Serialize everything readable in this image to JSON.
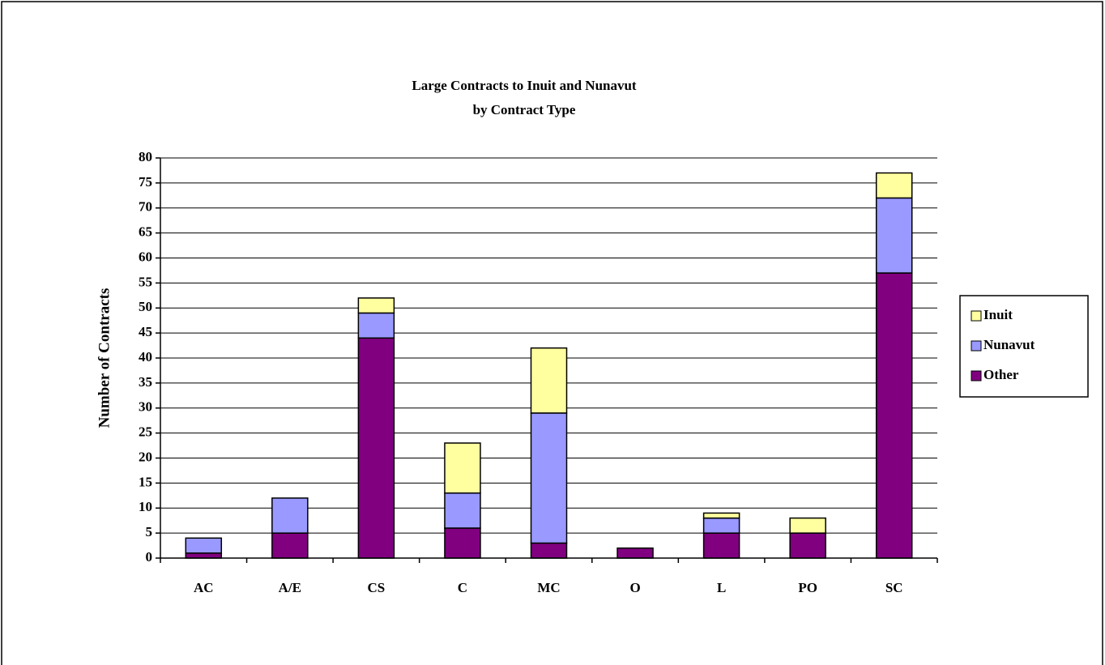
{
  "chart_data": {
    "type": "stacked_bar",
    "title": [
      "Large Contracts to Inuit and Nunavut",
      "by Contract Type"
    ],
    "y_label": "Number of Contracts",
    "categories": [
      "AC",
      "A/E",
      "CS",
      "C",
      "MC",
      "O",
      "L",
      "PO",
      "SC"
    ],
    "series": [
      {
        "name": "Other",
        "color": "#800080",
        "values": [
          1,
          5,
          44,
          6,
          3,
          2,
          5,
          5,
          57
        ]
      },
      {
        "name": "Nunavut",
        "color": "#9999ff",
        "values": [
          3,
          7,
          5,
          7,
          26,
          0,
          3,
          0,
          15
        ]
      },
      {
        "name": "Inuit",
        "color": "#ffffa0",
        "values": [
          0,
          0,
          3,
          10,
          13,
          0,
          1,
          3,
          5
        ]
      }
    ],
    "ylim": [
      0,
      80
    ],
    "yticks": [
      0,
      5,
      10,
      15,
      20,
      25,
      30,
      35,
      40,
      45,
      50,
      55,
      60,
      65,
      70,
      75,
      80
    ],
    "grid": true,
    "legend": "right"
  }
}
